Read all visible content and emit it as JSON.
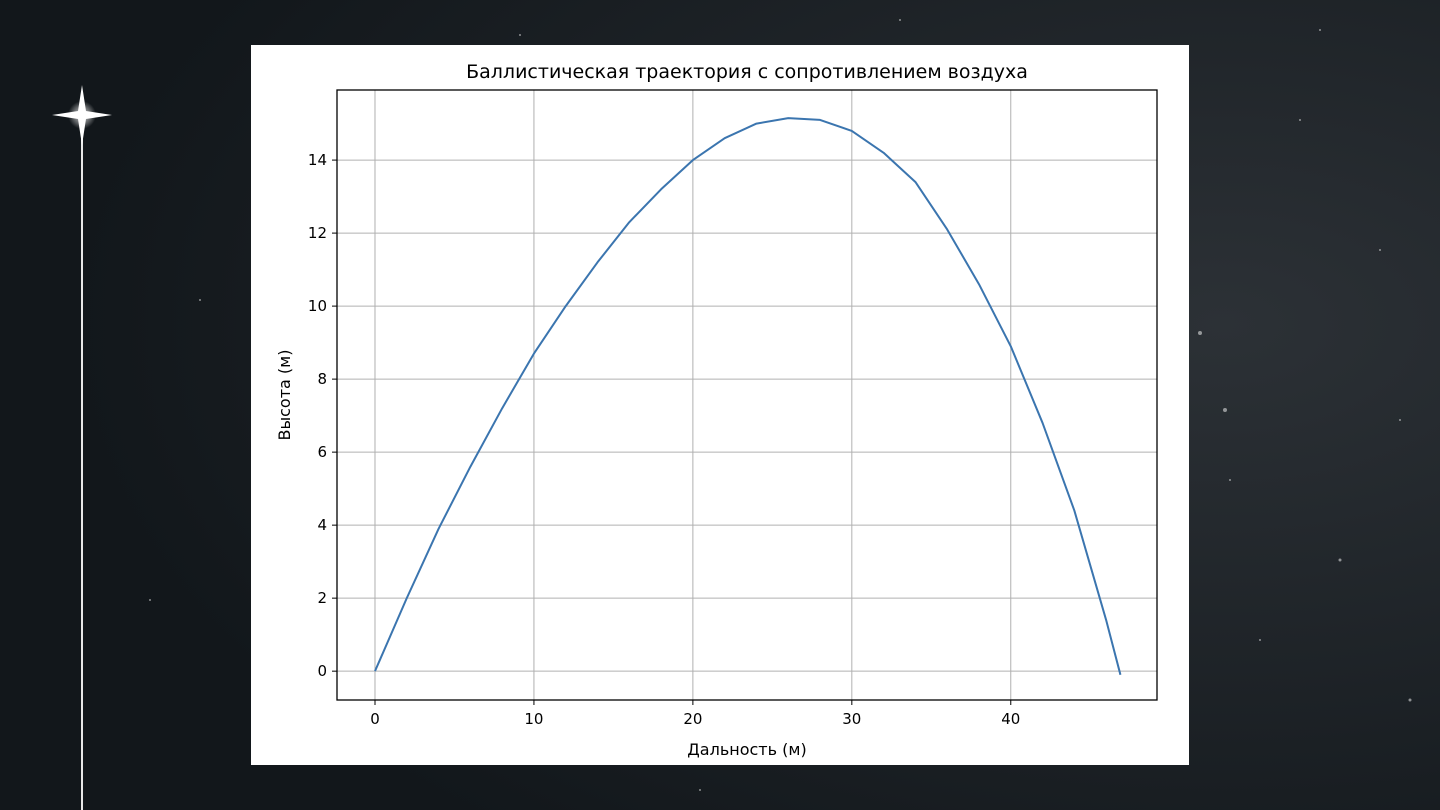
{
  "chart_data": {
    "type": "line",
    "title": "Баллистическая траектория с сопротивлением воздуха",
    "x_label": "Дальность (м)",
    "y_label": "Высота (м)",
    "x": [
      0,
      2,
      4,
      6,
      8,
      10,
      12,
      14,
      16,
      18,
      20,
      22,
      24,
      26,
      28,
      30,
      32,
      34,
      36,
      38,
      40,
      42,
      44,
      46,
      46.9
    ],
    "values": [
      0,
      2.0,
      3.9,
      5.6,
      7.2,
      8.7,
      10.0,
      11.2,
      12.3,
      13.2,
      14.0,
      14.6,
      15.0,
      15.15,
      15.1,
      14.8,
      14.2,
      13.4,
      12.1,
      10.6,
      8.9,
      6.8,
      4.4,
      1.4,
      -0.1
    ],
    "color": "#3b75af",
    "xlim": [
      -2.39,
      49.2
    ],
    "ylim": [
      -0.79,
      15.92
    ],
    "xticks": [
      0,
      10,
      20,
      30,
      40
    ],
    "yticks": [
      0,
      2,
      4,
      6,
      8,
      10,
      12,
      14
    ],
    "grid": true
  }
}
